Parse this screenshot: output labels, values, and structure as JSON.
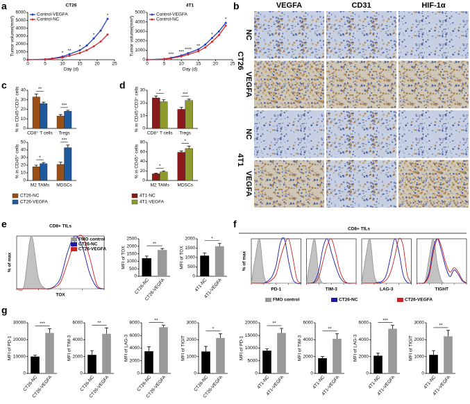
{
  "panels": [
    "a",
    "b",
    "c",
    "d",
    "e",
    "f",
    "g"
  ],
  "ihc": {
    "columns": [
      "VEGFA",
      "CD31",
      "HIF-1α"
    ],
    "groups": [
      {
        "name": "CT26",
        "rows": [
          "NC",
          "VEGFA"
        ]
      },
      {
        "name": "4T1",
        "rows": [
          "NC",
          "VEGFA"
        ]
      }
    ]
  },
  "chart_data": [
    {
      "type": "line",
      "title": "CT26",
      "xlabel": "Day (d)",
      "ylabel": "Tumor volume(mm³)",
      "x": [
        0,
        5,
        7,
        10,
        12,
        15,
        17,
        19,
        21,
        23
      ],
      "series": [
        {
          "name": "Control-VEGFA",
          "color": "#1f3fbf",
          "values": [
            0,
            60,
            150,
            400,
            700,
            1200,
            1800,
            2700,
            3700,
            5200
          ]
        },
        {
          "name": "Control-NC",
          "color": "#d62728",
          "values": [
            0,
            50,
            120,
            280,
            500,
            850,
            1200,
            1700,
            2300,
            3200
          ]
        }
      ],
      "xlim": [
        0,
        25
      ],
      "xticks": [
        0,
        5,
        10,
        15,
        20,
        25
      ],
      "ylim": [
        0,
        6000
      ],
      "yticks": [
        0,
        1000,
        2000,
        3000,
        4000,
        5000,
        6000
      ],
      "annotations": [
        {
          "x": 10,
          "text": "*"
        },
        {
          "x": 12,
          "text": "**"
        },
        {
          "x": 15,
          "text": "*"
        },
        {
          "x": 19,
          "text": "*"
        },
        {
          "x": 23,
          "text": "*"
        }
      ]
    },
    {
      "type": "line",
      "title": "4T1",
      "xlabel": "Day (d)",
      "ylabel": "Tumor volume(mm³)",
      "x": [
        0,
        5,
        7,
        10,
        12,
        15,
        17,
        19,
        21,
        23
      ],
      "series": [
        {
          "name": "Control-VEGFA",
          "color": "#1f3fbf",
          "values": [
            0,
            80,
            200,
            450,
            700,
            1100,
            1600,
            2300,
            3000,
            3900
          ]
        },
        {
          "name": "Control-NC",
          "color": "#d62728",
          "values": [
            0,
            60,
            150,
            350,
            550,
            900,
            1300,
            1900,
            2600,
            3600
          ]
        }
      ],
      "xlim": [
        0,
        25
      ],
      "xticks": [
        0,
        5,
        10,
        15,
        20,
        25
      ],
      "ylim": [
        0,
        5000
      ],
      "yticks": [
        0,
        1000,
        2000,
        3000,
        4000,
        5000
      ],
      "annotations": [
        {
          "x": 7,
          "text": "***"
        },
        {
          "x": 10,
          "text": "***"
        },
        {
          "x": 12,
          "text": "****"
        },
        {
          "x": 15,
          "text": "**"
        },
        {
          "x": 19,
          "text": "*"
        },
        {
          "x": 23,
          "text": "*"
        }
      ]
    },
    {
      "type": "grouped_bar",
      "ylabel": "% in CD45⁺CD3⁺ cells",
      "categories": [
        "CD8⁺ T cells",
        "Tregs"
      ],
      "series": [
        {
          "color": "#9a4f16",
          "values": [
            33,
            13
          ],
          "errors": [
            3,
            1.5
          ]
        },
        {
          "color": "#1f5a9e",
          "values": [
            26,
            18
          ],
          "errors": [
            1.5,
            1
          ]
        }
      ],
      "ylim": [
        0,
        40
      ],
      "yticks": [
        0,
        10,
        20,
        30,
        40
      ],
      "sig": [
        "**",
        "***"
      ]
    },
    {
      "type": "grouped_bar",
      "ylabel": "% in CD45⁺ cells",
      "categories": [
        "M2 TAMs",
        "MDSCs"
      ],
      "series": [
        {
          "name": "CT26-NC",
          "color": "#9a4f16",
          "values": [
            18,
            21
          ],
          "errors": [
            2,
            3
          ]
        },
        {
          "name": "CT26-VEGFA",
          "color": "#1f5a9e",
          "values": [
            22,
            43
          ],
          "errors": [
            1.5,
            3.5
          ]
        }
      ],
      "ylim": [
        0,
        50
      ],
      "yticks": [
        0,
        10,
        20,
        30,
        40,
        50
      ],
      "sig": [
        "*",
        "***"
      ],
      "legend": "below"
    },
    {
      "type": "grouped_bar",
      "ylabel": "% in CD45⁺CD3⁺ cells",
      "categories": [
        "CD8⁺ T cells",
        "Tregs"
      ],
      "series": [
        {
          "color": "#8b1a1a",
          "values": [
            24,
            15
          ],
          "errors": [
            1.5,
            1.5
          ]
        },
        {
          "color": "#8e9a2b",
          "values": [
            21,
            22
          ],
          "errors": [
            1.5,
            1
          ]
        }
      ],
      "ylim": [
        0,
        30
      ],
      "yticks": [
        0,
        10,
        20,
        30
      ],
      "sig": [
        "*",
        "***"
      ]
    },
    {
      "type": "grouped_bar",
      "ylabel": "% in CD45⁺ cells",
      "categories": [
        "M2 TAMs",
        "MDSCs"
      ],
      "series": [
        {
          "name": "4T1-NC",
          "color": "#8b1a1a",
          "values": [
            14,
            59
          ],
          "errors": [
            1.5,
            3
          ]
        },
        {
          "name": "4T1-VEGFA",
          "color": "#8e9a2b",
          "values": [
            18,
            67
          ],
          "errors": [
            2,
            5
          ]
        }
      ],
      "ylim": [
        0,
        80
      ],
      "yticks": [
        0,
        20,
        40,
        60,
        80
      ],
      "sig": [
        "*",
        "*"
      ],
      "legend": "below"
    },
    {
      "type": "histogram_group",
      "title": "CD8+ TILs",
      "ylabel": "% of max",
      "legend_loc": "upper right",
      "x": [
        0,
        1,
        2,
        3,
        4,
        5,
        6,
        7,
        8,
        9,
        10,
        11,
        12
      ],
      "xlim": [
        0,
        12
      ],
      "ylim": [
        0,
        100
      ],
      "legend": [
        {
          "name": "FMO control",
          "color": "#999999",
          "fill": true
        },
        {
          "name": "CT26-NC",
          "color": "#1a1aa6",
          "fill": false
        },
        {
          "name": "CT26-VEGFA",
          "color": "#cc2222",
          "fill": false
        }
      ],
      "panels": [
        {
          "xlabel": "TOX",
          "series": [
            [
              0,
              5,
              100,
              20,
              0,
              0,
              0,
              0,
              0,
              0,
              0,
              0,
              0
            ],
            [
              0,
              0,
              0,
              0,
              0,
              3,
              20,
              70,
              100,
              80,
              30,
              3,
              0
            ],
            [
              0,
              0,
              0,
              0,
              0,
              2,
              12,
              50,
              90,
              100,
              60,
              8,
              0
            ]
          ]
        }
      ]
    },
    {
      "type": "bar",
      "ylabel": "MFI of TOX",
      "categories": [
        "CT26-NC",
        "CT26-VEGFA"
      ],
      "values": [
        1200,
        1750
      ],
      "errors": [
        150,
        100
      ],
      "colors": [
        "#000000",
        "#999999"
      ],
      "ylim": [
        0,
        2500
      ],
      "yticks": [
        0,
        500,
        1000,
        1500,
        2000,
        2500
      ],
      "sig": "**"
    },
    {
      "type": "bar",
      "ylabel": "MFI of TOX",
      "categories": [
        "4T1-NC",
        "4T1-VEGFA"
      ],
      "values": [
        1100,
        1600
      ],
      "errors": [
        150,
        150
      ],
      "colors": [
        "#000000",
        "#999999"
      ],
      "ylim": [
        0,
        2000
      ],
      "yticks": [
        0,
        500,
        1000,
        1500,
        2000
      ],
      "sig": "*"
    },
    {
      "type": "histogram_group",
      "title": "CD8+ TILs",
      "ylabel": "% of max",
      "legend_loc": "bottom",
      "x": [
        0,
        1,
        2,
        3,
        4,
        5,
        6,
        7,
        8,
        9,
        10,
        11,
        12
      ],
      "xlim": [
        0,
        12
      ],
      "ylim": [
        0,
        100
      ],
      "legend": [
        {
          "name": "FMO control",
          "color": "#999999",
          "fill": true
        },
        {
          "name": "CT26-NC",
          "color": "#1a1aa6",
          "fill": false
        },
        {
          "name": "CT26-VEGFA",
          "color": "#cc2222",
          "fill": false
        }
      ],
      "panels": [
        {
          "xlabel": "PD-1",
          "series": [
            [
              0,
              60,
              100,
              20,
              0,
              0,
              0,
              0,
              0,
              0,
              0,
              0,
              0
            ],
            [
              0,
              0,
              0,
              0,
              5,
              15,
              40,
              90,
              100,
              50,
              10,
              0,
              0
            ],
            [
              0,
              0,
              0,
              0,
              2,
              8,
              20,
              55,
              85,
              100,
              60,
              10,
              0
            ]
          ]
        },
        {
          "xlabel": "TIM-3",
          "series": [
            [
              0,
              60,
              100,
              20,
              0,
              0,
              0,
              0,
              0,
              0,
              0,
              0,
              0
            ],
            [
              0,
              0,
              5,
              30,
              80,
              100,
              70,
              40,
              15,
              3,
              0,
              0,
              0
            ],
            [
              0,
              0,
              2,
              15,
              50,
              85,
              100,
              70,
              30,
              8,
              0,
              0,
              0
            ]
          ]
        },
        {
          "xlabel": "LAG-3",
          "series": [
            [
              0,
              60,
              100,
              20,
              0,
              0,
              0,
              0,
              0,
              0,
              0,
              0,
              0
            ],
            [
              0,
              0,
              0,
              0,
              2,
              5,
              20,
              60,
              100,
              70,
              20,
              2,
              0
            ],
            [
              0,
              0,
              0,
              0,
              0,
              2,
              8,
              25,
              60,
              100,
              85,
              20,
              0
            ]
          ]
        },
        {
          "xlabel": "TIGHT",
          "series": [
            [
              0,
              0,
              5,
              60,
              100,
              40,
              5,
              0,
              0,
              0,
              0,
              0,
              0
            ],
            [
              0,
              0,
              3,
              25,
              80,
              100,
              70,
              35,
              15,
              30,
              20,
              5,
              0
            ],
            [
              0,
              0,
              2,
              20,
              70,
              100,
              80,
              45,
              25,
              35,
              25,
              8,
              0
            ]
          ]
        }
      ]
    },
    {
      "type": "bar",
      "ylabel": "MFI of PD-1",
      "categories": [
        "CT26-NC",
        "CT26-VEGFA"
      ],
      "values": [
        10000,
        24000
      ],
      "errors": [
        800,
        2500
      ],
      "colors": [
        "#000000",
        "#999999"
      ],
      "ylim": [
        0,
        30000
      ],
      "yticks": [
        0,
        10000,
        20000,
        30000
      ],
      "sig": "***"
    },
    {
      "type": "bar",
      "ylabel": "MFI of TIM-3",
      "categories": [
        "CT26-NC",
        "CT26-VEGFA"
      ],
      "values": [
        2200,
        4700
      ],
      "errors": [
        500,
        700
      ],
      "colors": [
        "#000000",
        "#999999"
      ],
      "ylim": [
        0,
        6000
      ],
      "yticks": [
        0,
        2000,
        4000,
        6000
      ],
      "sig": "**"
    },
    {
      "type": "bar",
      "ylabel": "MFI of LAG-3",
      "categories": [
        "CT26-NC",
        "CT26-VEGFA"
      ],
      "values": [
        3500,
        7300
      ],
      "errors": [
        700,
        300
      ],
      "colors": [
        "#000000",
        "#999999"
      ],
      "ylim": [
        0,
        8000
      ],
      "yticks": [
        0,
        2000,
        4000,
        6000,
        8000
      ],
      "sig": "**"
    },
    {
      "type": "bar",
      "ylabel": "MFI of TIGIT",
      "categories": [
        "CT26-NC",
        "CT26-VEGFA"
      ],
      "values": [
        1300,
        2100
      ],
      "errors": [
        300,
        250
      ],
      "colors": [
        "#000000",
        "#999999"
      ],
      "ylim": [
        0,
        3000
      ],
      "yticks": [
        0,
        1000,
        2000,
        3000
      ],
      "sig": "*"
    },
    {
      "type": "bar",
      "ylabel": "MFI of PD-1",
      "categories": [
        "4T1-NC",
        "4T1-VEGFA"
      ],
      "values": [
        9000,
        16000
      ],
      "errors": [
        700,
        1800
      ],
      "colors": [
        "#000000",
        "#999999"
      ],
      "ylim": [
        0,
        20000
      ],
      "yticks": [
        0,
        5000,
        10000,
        15000,
        20000
      ],
      "sig": "**"
    },
    {
      "type": "bar",
      "ylabel": "MFI of TIM-3",
      "categories": [
        "4T1-NC",
        "4T1-VEGFA"
      ],
      "values": [
        1800,
        4100
      ],
      "errors": [
        200,
        600
      ],
      "colors": [
        "#000000",
        "#999999"
      ],
      "ylim": [
        0,
        6000
      ],
      "yticks": [
        0,
        2000,
        4000,
        6000
      ],
      "sig": "**"
    },
    {
      "type": "bar",
      "ylabel": "MFI of LAG-3",
      "categories": [
        "4T1-NC",
        "4T1-VEGFA"
      ],
      "values": [
        2100,
        5300
      ],
      "errors": [
        300,
        400
      ],
      "colors": [
        "#000000",
        "#999999"
      ],
      "ylim": [
        0,
        6000
      ],
      "yticks": [
        0,
        2000,
        4000,
        6000
      ],
      "sig": "***"
    },
    {
      "type": "bar",
      "ylabel": "MFI of TIGIT",
      "categories": [
        "4T1-NC",
        "4T1-VEGFA"
      ],
      "values": [
        1100,
        2200
      ],
      "errors": [
        250,
        350
      ],
      "colors": [
        "#000000",
        "#999999"
      ],
      "ylim": [
        0,
        3000
      ],
      "yticks": [
        0,
        1000,
        2000,
        3000
      ],
      "sig": "**"
    }
  ]
}
